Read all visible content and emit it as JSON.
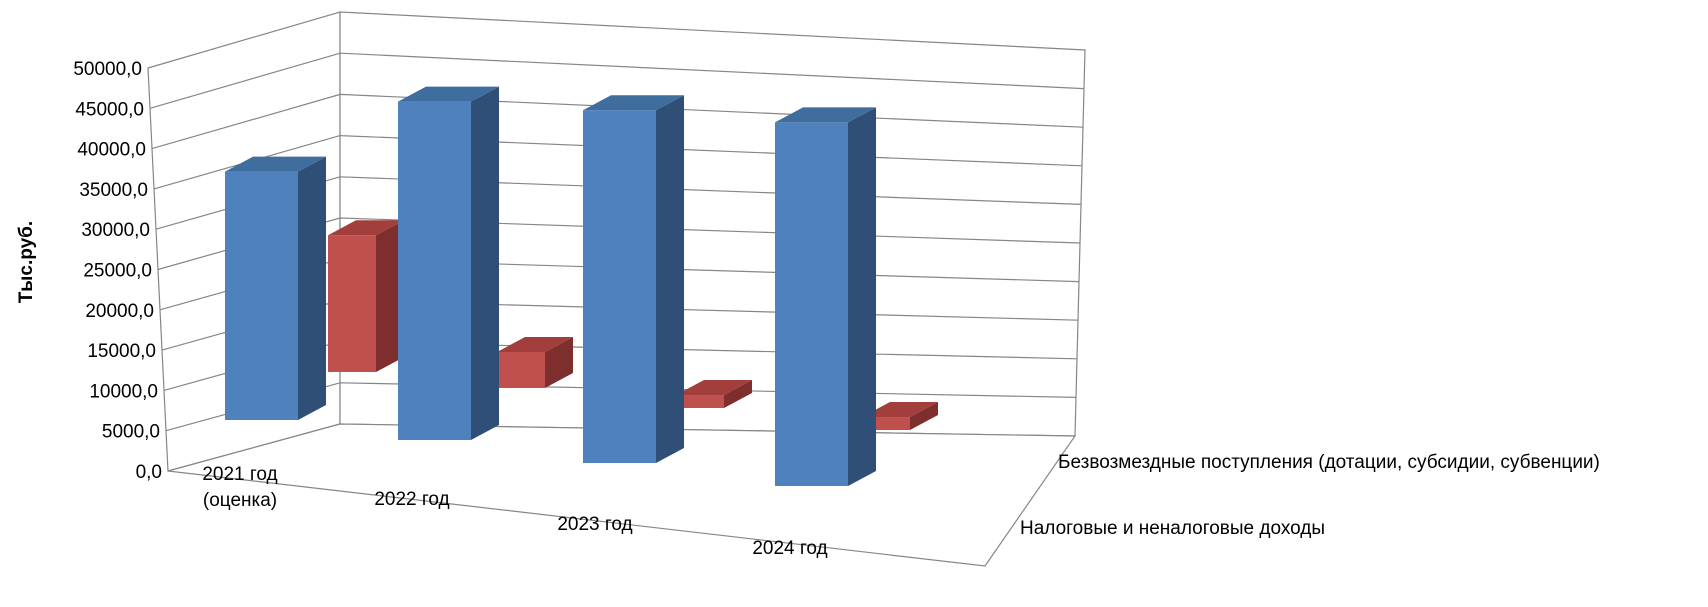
{
  "chart_data": {
    "type": "bar",
    "subtype": "3d-clustered-column",
    "title": "",
    "xlabel": "",
    "ylabel": "Тыс.руб.",
    "ylim": [
      0,
      50000
    ],
    "y_ticks": [
      "0,0",
      "5000,0",
      "10000,0",
      "15000,0",
      "20000,0",
      "25000,0",
      "30000,0",
      "35000,0",
      "40000,0",
      "45000,0",
      "50000,0"
    ],
    "grid": true,
    "categories": [
      "2021 год (оценка)",
      "2022 год",
      "2023 год",
      "2024 год"
    ],
    "category_lines": [
      [
        "2021 год",
        "(оценка)"
      ],
      [
        "2022 год"
      ],
      [
        "2023 год"
      ],
      [
        "2024 год"
      ]
    ],
    "series": [
      {
        "name": "Безвозмездные поступления (дотации, субсидии, субвенции)",
        "color": "#4F81BD",
        "values": [
          34500,
          47000,
          49000,
          50500
        ]
      },
      {
        "name": "Налоговые и неналоговые доходы",
        "color": "#C0504D",
        "values": [
          19000,
          5000,
          1800,
          1800
        ]
      }
    ],
    "legend": "depth-axis-labels"
  }
}
